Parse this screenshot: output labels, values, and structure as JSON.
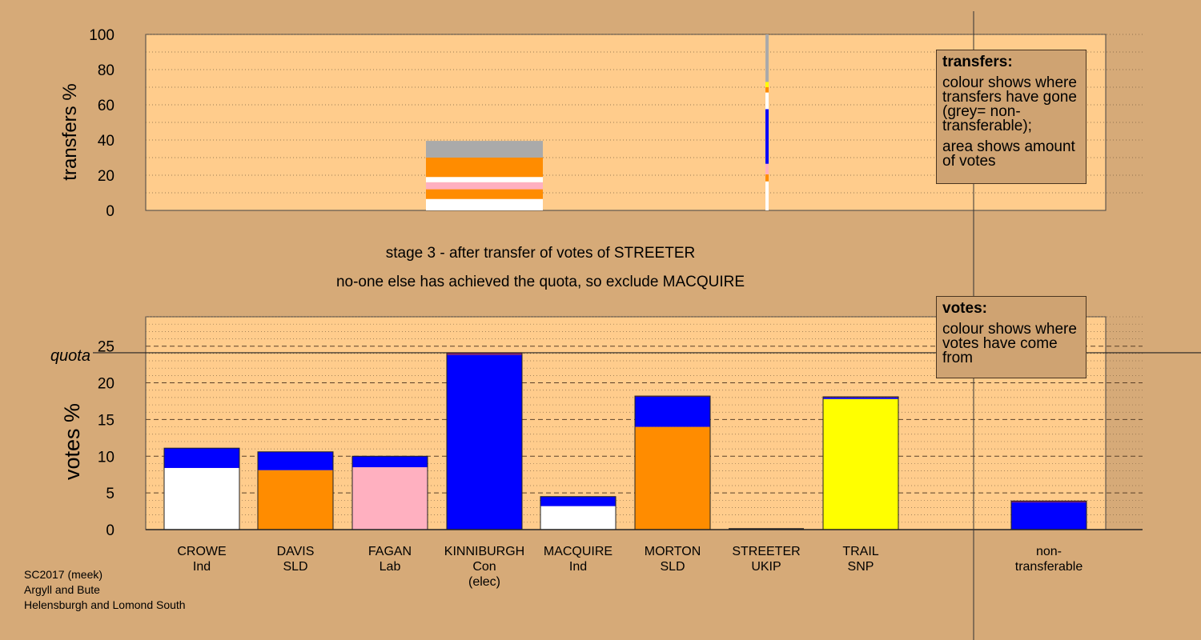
{
  "stage": {
    "line1": "stage 3 - after transfer of votes of STREETER",
    "line2": "no-one else has achieved the quota, so exclude MACQUIRE"
  },
  "footer": {
    "line1": "SC2017 (meek)",
    "line2": "Argyll and Bute",
    "line3": "Helensburgh and Lomond South"
  },
  "legend_transfers": {
    "title": "transfers:",
    "para1": "colour shows where transfers have gone (grey= non-transferable);",
    "para2": "area shows amount of votes"
  },
  "legend_votes": {
    "title": "votes:",
    "para1": "colour shows where votes have come from"
  },
  "colors": {
    "Ind_CROWE": "#ffffff",
    "SLD_DAVIS": "#ff8c00",
    "Lab": "#ffb0c0",
    "Con": "#0000ff",
    "Ind_MACQUIRE": "#ffffff",
    "SLD_MORTON": "#ff8c00",
    "UKIP": "#7a1a6a",
    "SNP": "#ffff00",
    "nontransferable": "#aaaaaa",
    "plot_bg": "#ffcc8c",
    "outside_bg": "#d6aa78"
  },
  "chart_data": [
    {
      "type": "bar",
      "name": "transfers",
      "ylabel": "transfers %",
      "ylim": [
        0,
        100
      ],
      "yticks": [
        0,
        20,
        40,
        60,
        80,
        100
      ],
      "grid": true,
      "stacks": [
        {
          "label": "MACQUIRE",
          "segments": [
            {
              "to": "CROWE",
              "color": "#ffffff",
              "value": 6.5
            },
            {
              "to": "DAVIS",
              "color": "#ff8c00",
              "value": 5.5
            },
            {
              "to": "FAGAN",
              "color": "#ffb0c0",
              "value": 4.0
            },
            {
              "to": "KINNIBURGH",
              "color": "#ffffff",
              "value": 3.0
            },
            {
              "to": "MORTON",
              "color": "#ff8c00",
              "value": 11.0
            },
            {
              "to": "non-transferable",
              "color": "#aaaaaa",
              "value": 9.5
            }
          ]
        },
        {
          "label": "STREETER",
          "segments": [
            {
              "to": "CROWE",
              "color": "#ffffff",
              "value": 16.5
            },
            {
              "to": "DAVIS",
              "color": "#ff8c00",
              "value": 4.0
            },
            {
              "to": "FAGAN",
              "color": "#ffb0c0",
              "value": 6.0
            },
            {
              "to": "KINNIBURGH",
              "color": "#0000ff",
              "value": 31.0
            },
            {
              "to": "MACQUIRE",
              "color": "#ffffff",
              "value": 9.5
            },
            {
              "to": "MORTON",
              "color": "#ff8c00",
              "value": 3.0
            },
            {
              "to": "TRAIL",
              "color": "#ffff00",
              "value": 3.0
            },
            {
              "to": "non-transferable",
              "color": "#aaaaaa",
              "value": 27.0
            }
          ]
        }
      ]
    },
    {
      "type": "bar",
      "name": "votes",
      "ylabel": "votes %",
      "ylim": [
        0,
        29
      ],
      "yticks": [
        0,
        5,
        10,
        15,
        20,
        25
      ],
      "quota": 24.1,
      "quota_label": "quota",
      "grid": true,
      "candidates": [
        {
          "name": "CROWE",
          "party": "Ind",
          "note": "",
          "segments": [
            {
              "color": "#ffffff",
              "value": 8.4
            },
            {
              "color": "#0000ff",
              "value": 2.7
            }
          ]
        },
        {
          "name": "DAVIS",
          "party": "SLD",
          "note": "",
          "segments": [
            {
              "color": "#ff8c00",
              "value": 8.1
            },
            {
              "color": "#0000ff",
              "value": 2.5
            }
          ]
        },
        {
          "name": "FAGAN",
          "party": "Lab",
          "note": "",
          "segments": [
            {
              "color": "#ffb0c0",
              "value": 8.5
            },
            {
              "color": "#0000ff",
              "value": 1.5
            }
          ]
        },
        {
          "name": "KINNIBURGH",
          "party": "Con",
          "note": "(elec)",
          "segments": [
            {
              "color": "#0000ff",
              "value": 23.8
            },
            {
              "color": "#7a1a6a",
              "value": 0.3
            }
          ]
        },
        {
          "name": "MACQUIRE",
          "party": "Ind",
          "note": "",
          "segments": [
            {
              "color": "#ffffff",
              "value": 3.2
            },
            {
              "color": "#0000ff",
              "value": 1.3
            }
          ]
        },
        {
          "name": "MORTON",
          "party": "SLD",
          "note": "",
          "segments": [
            {
              "color": "#ff8c00",
              "value": 14.0
            },
            {
              "color": "#0000ff",
              "value": 4.1
            },
            {
              "color": "#7a1a6a",
              "value": 0.1
            }
          ]
        },
        {
          "name": "STREETER",
          "party": "UKIP",
          "note": "",
          "segments": []
        },
        {
          "name": "TRAIL",
          "party": "SNP",
          "note": "",
          "segments": [
            {
              "color": "#ffff00",
              "value": 17.8
            },
            {
              "color": "#0000ff",
              "value": 0.2
            },
            {
              "color": "#7a1a6a",
              "value": 0.1
            }
          ]
        }
      ],
      "nontransferable": {
        "label1": "non-",
        "label2": "transferable",
        "segments": [
          {
            "color": "#0000ff",
            "value": 3.7
          },
          {
            "color": "#7a1a6a",
            "value": 0.2
          }
        ]
      }
    }
  ]
}
